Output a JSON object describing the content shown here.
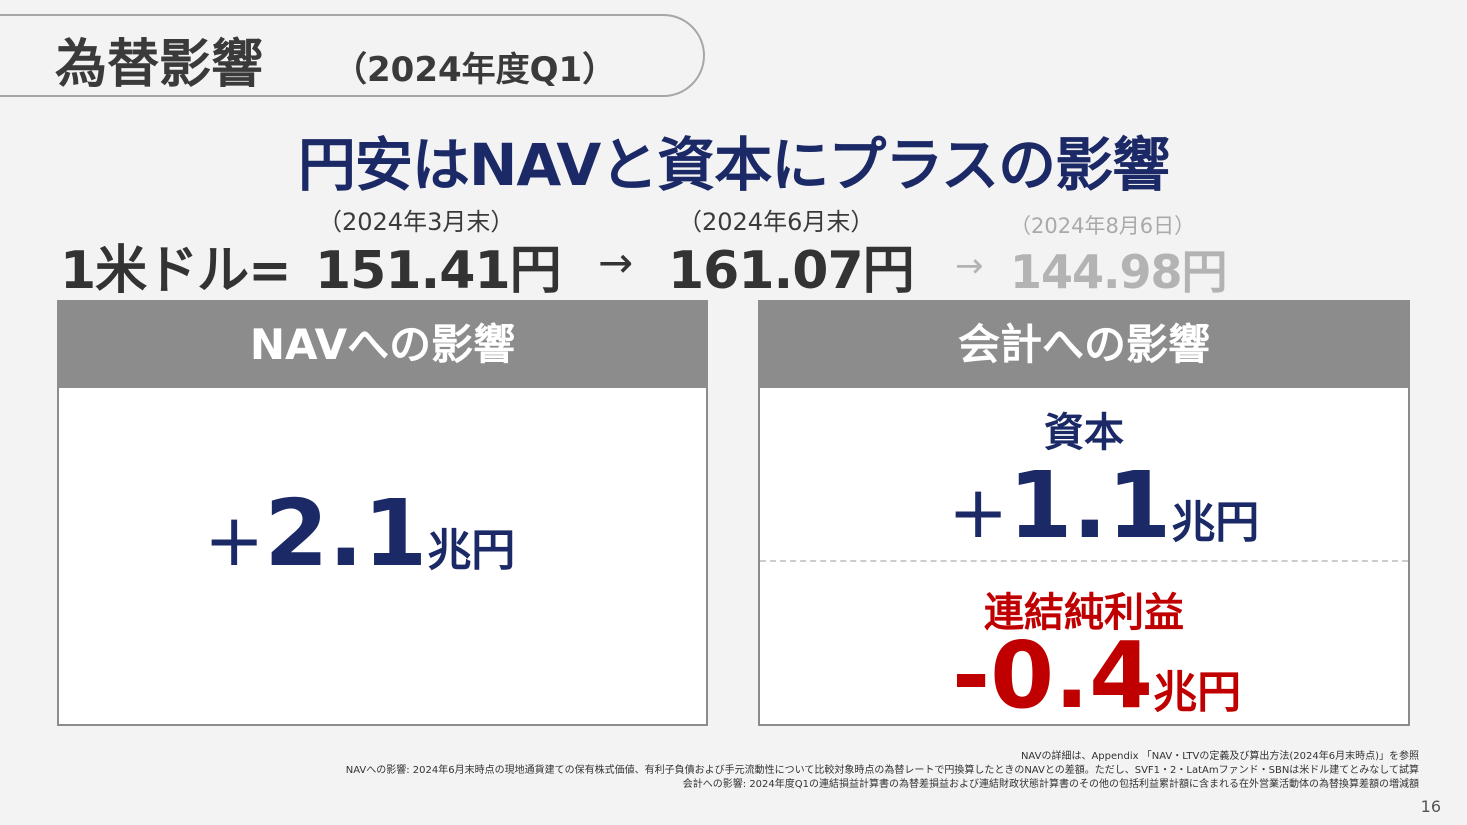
{
  "title": {
    "main": "為替影響",
    "sub": "（2024年度Q1）"
  },
  "headline": "円安はNAVと資本にプラスの影響",
  "rates": {
    "prefix": "1米ドル=",
    "d1": "（2024年3月末）",
    "v1": "151.41円",
    "d2": "（2024年6月末）",
    "v2": "161.07円",
    "d3": "（2024年8月6日）",
    "v3": "144.98円",
    "arrow": "→"
  },
  "nav_box": {
    "header": "NAVへの影響",
    "sign": "+",
    "value": "2.1",
    "unit": "兆円"
  },
  "accounting_box": {
    "header": "会計への影響",
    "capital": {
      "label": "資本",
      "sign": "+",
      "value": "1.1",
      "unit": "兆円"
    },
    "net_income": {
      "label": "連結純利益",
      "value": "-0.4",
      "unit": "兆円"
    }
  },
  "notes": [
    "NAVの詳細は、Appendix 「NAV・LTVの定義及び算出方法(2024年6月末時点)」を参照",
    "NAVへの影響: 2024年6月末時点の現地通貨建ての保有株式価値、有利子負債および手元流動性について比較対象時点の為替レートで円換算したときのNAVとの差額。ただし、SVF1・2・LatAmファンド・SBNは米ドル建てとみなして試算",
    "会計への影響: 2024年度Q1の連結損益計算書の為替差損益および連結財政状態計算書のその他の包括利益累計額に含まれる在外営業活動体の為替換算差額の増減額"
  ],
  "page_number": "16",
  "colors": {
    "navy": "#1b2a66",
    "red": "#c00000",
    "gray_header": "#8c8c8c"
  }
}
